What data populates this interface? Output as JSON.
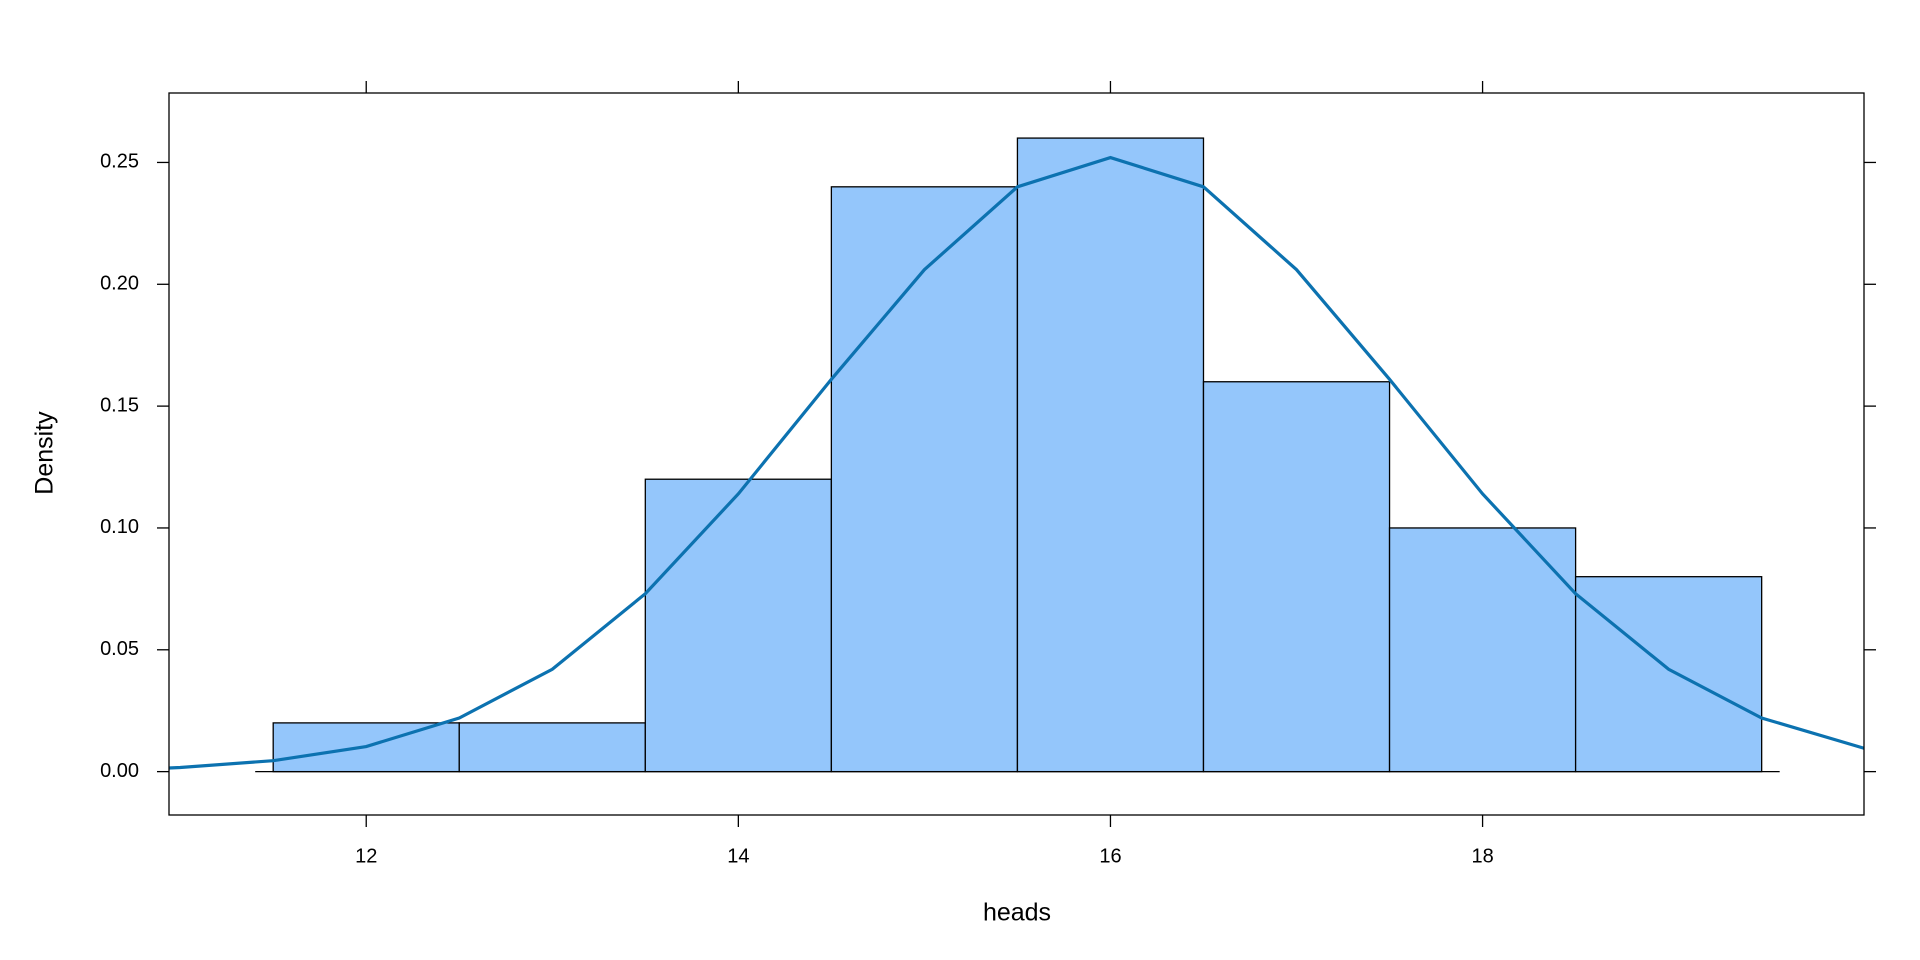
{
  "chart_data": {
    "type": "histogram",
    "xlabel": "heads",
    "ylabel": "Density",
    "bins": [
      11.5,
      12.5,
      13.5,
      14.5,
      15.5,
      16.5,
      17.5,
      18.5,
      19.5
    ],
    "values": [
      0.02,
      0.02,
      0.12,
      0.24,
      0.26,
      0.16,
      0.1,
      0.08
    ],
    "color": "#94c6fb",
    "edgecolor": "#000000",
    "density_line": {
      "color": "#0c72b0",
      "x": [
        10.94,
        11,
        11.5,
        12,
        12.5,
        13,
        13.5,
        14,
        14.5,
        15,
        15.5,
        16,
        16.5,
        17,
        17.5,
        18,
        18.5,
        19,
        19.5,
        20.05
      ],
      "values": [
        0.0015,
        0.0017,
        0.0045,
        0.0103,
        0.022,
        0.042,
        0.073,
        0.114,
        0.161,
        0.206,
        0.24,
        0.252,
        0.24,
        0.206,
        0.161,
        0.114,
        0.073,
        0.042,
        0.022,
        0.0096
      ]
    },
    "xlim": [
      10.94,
      20.05
    ],
    "ylim": [
      -0.0178,
      0.2785
    ],
    "xticks": [
      12,
      14,
      16,
      18
    ],
    "yticks": [
      {
        "value": 0,
        "label": "0.00"
      },
      0.05,
      {
        "value": 0.1,
        "label": "0.10"
      },
      0.15,
      {
        "value": 0.2,
        "label": "0.20"
      },
      0.25
    ]
  }
}
